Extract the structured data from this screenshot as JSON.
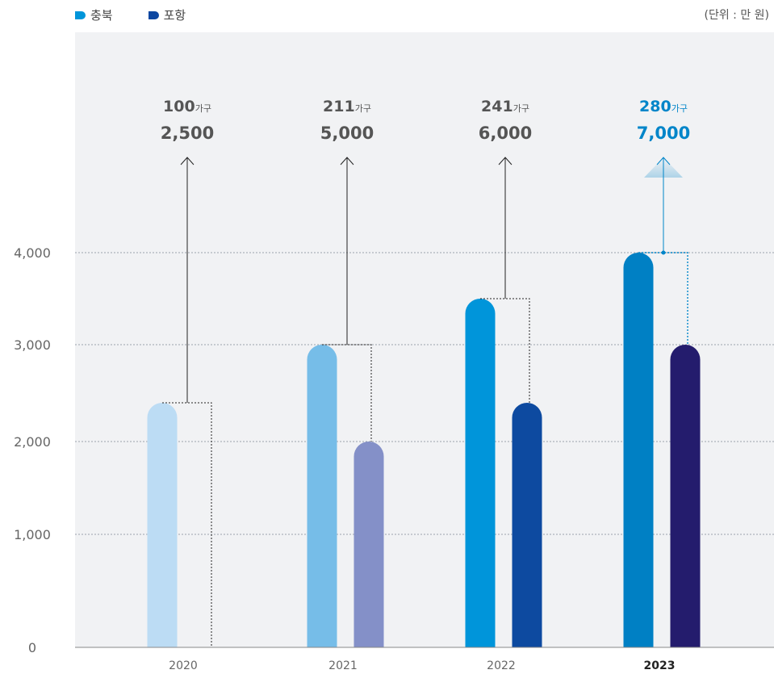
{
  "legend": {
    "items": [
      {
        "label": "충북",
        "color": "#0095da"
      },
      {
        "label": "포항",
        "color": "#0d47a1"
      }
    ]
  },
  "unit_label": "(단위 : 만 원)",
  "chart_data": {
    "type": "bar",
    "categories": [
      "2020",
      "2021",
      "2022",
      "2023"
    ],
    "highlight_category": "2023",
    "series": [
      {
        "name": "충북",
        "values": [
          2400,
          3000,
          3500,
          4000
        ],
        "colors": [
          "#bcdcf4",
          "#76bde8",
          "#0095da",
          "#0080c4"
        ]
      },
      {
        "name": "포항",
        "values": [
          0,
          2000,
          2400,
          3000
        ],
        "colors": [
          "#bcdcf4",
          "#8490c8",
          "#0d4aa0",
          "#241c6d"
        ]
      }
    ],
    "y_ticks": [
      "0",
      "1,000",
      "2,000",
      "3,000",
      "4,000"
    ],
    "y_tick_values": [
      0,
      1000,
      2000,
      3000,
      4000
    ],
    "ylim": [
      0,
      4000
    ],
    "grid": true,
    "annotations": [
      {
        "count": "100",
        "count_unit": "가구",
        "value": "2,500"
      },
      {
        "count": "211",
        "count_unit": "가구",
        "value": "5,000"
      },
      {
        "count": "241",
        "count_unit": "가구",
        "value": "6,000"
      },
      {
        "count": "280",
        "count_unit": "가구",
        "value": "7,000"
      }
    ],
    "xlabel": "",
    "ylabel": "",
    "title": ""
  }
}
